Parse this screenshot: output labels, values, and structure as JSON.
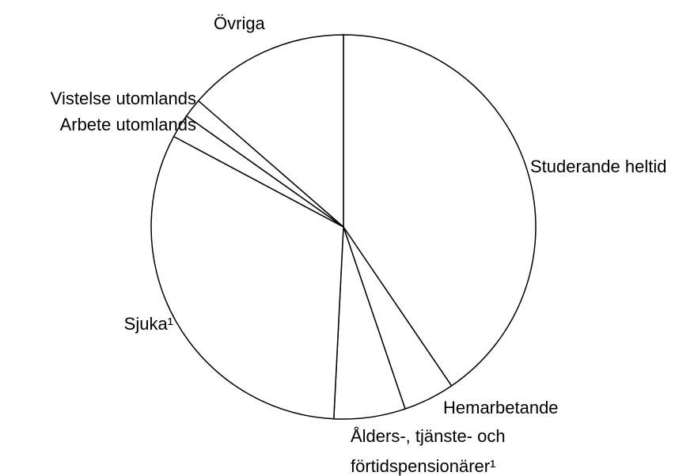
{
  "chart_data": {
    "type": "pie",
    "categories": [
      "Studerande heltid",
      "Hemarbetande",
      "Ålders-, tjänste- och förtidspensionärer¹",
      "Sjuka¹",
      "Arbete utomlands",
      "Vistelse utomlands",
      "Övriga"
    ],
    "values": [
      40.5,
      4.3,
      6.0,
      32.0,
      2.0,
      1.6,
      13.6
    ],
    "color": "#ffffff",
    "edge_color": "#000000"
  }
}
